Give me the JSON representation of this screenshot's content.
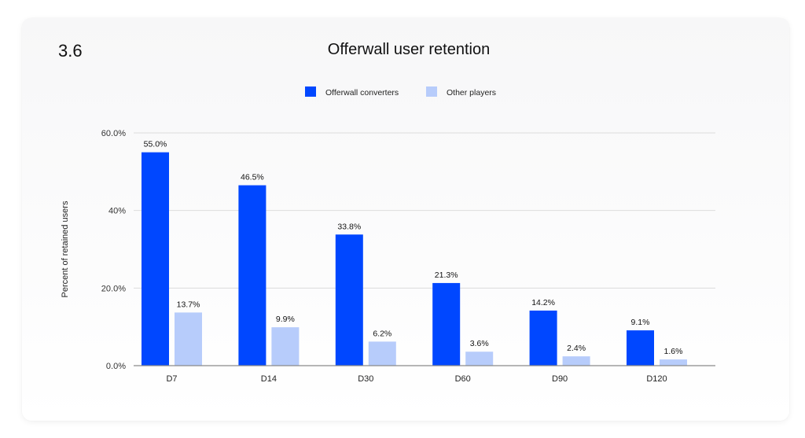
{
  "figure_number": "3.6",
  "colors": {
    "offerwall_converters": "#0047ff",
    "other_players": "#b7ccfb",
    "gridline": "#dcdcdc",
    "axis": "#8a8a8a",
    "text": "#111111"
  },
  "chart_data": {
    "type": "bar",
    "title": "Offerwall user retention",
    "xlabel": "",
    "ylabel": "Percent of retained users",
    "categories": [
      "D7",
      "D14",
      "D30",
      "D60",
      "D90",
      "D120"
    ],
    "series": [
      {
        "name": "Offerwall converters",
        "values": [
          55.0,
          46.5,
          33.8,
          21.3,
          14.2,
          9.1
        ],
        "labels": [
          "55.0%",
          "46.5%",
          "33.8%",
          "21.3%",
          "14.2%",
          "9.1%"
        ]
      },
      {
        "name": "Other players",
        "values": [
          13.7,
          9.9,
          6.2,
          3.6,
          2.4,
          1.6
        ],
        "labels": [
          "13.7%",
          "9.9%",
          "6.2%",
          "3.6%",
          "2.4%",
          "1.6%"
        ]
      }
    ],
    "ylim": [
      0,
      60
    ],
    "y_ticks": [
      0,
      20,
      40,
      60
    ],
    "y_tick_labels": [
      "0.0%",
      "20.0%",
      "40%",
      "60.0%"
    ],
    "grid": true,
    "legend_position": "top-center"
  }
}
